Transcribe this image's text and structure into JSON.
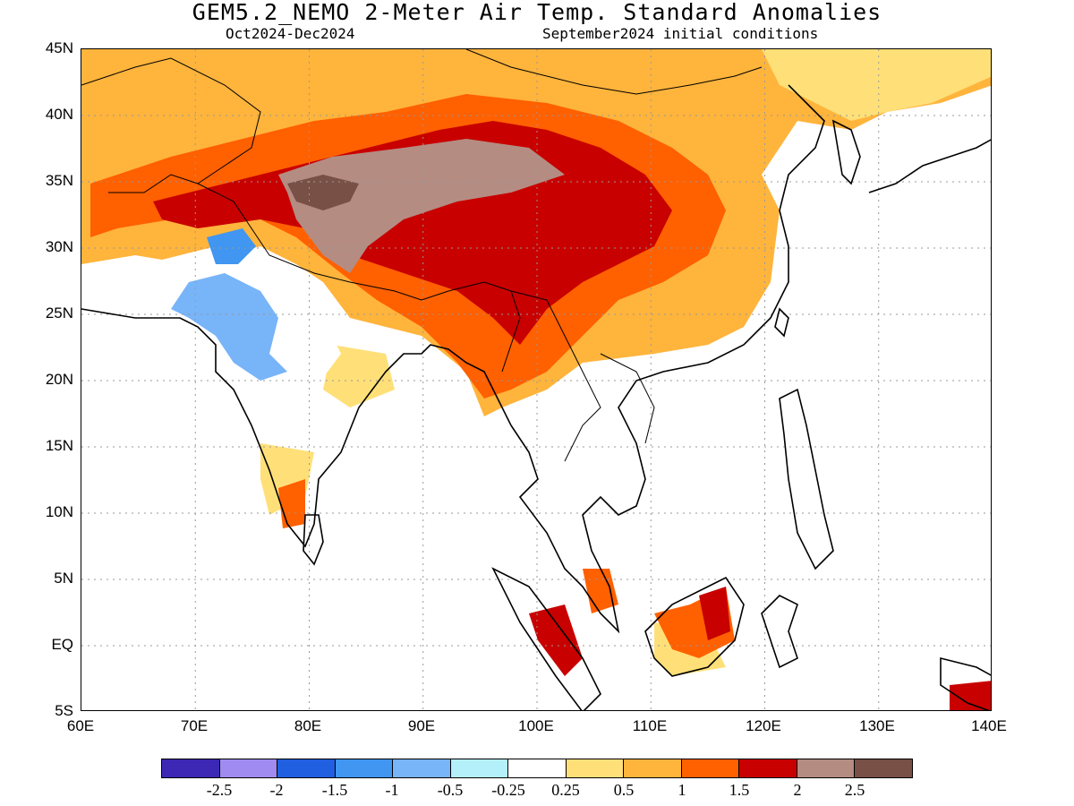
{
  "title": "GEM5.2_NEMO 2-Meter Air Temp. Standard Anomalies",
  "subtitle_period": "Oct2024-Dec2024",
  "subtitle_init": "September2024 initial conditions",
  "map": {
    "lon_range": [
      60,
      140
    ],
    "lat_range": [
      -5,
      45
    ],
    "lat_ticks": [
      "45N",
      "40N",
      "35N",
      "30N",
      "25N",
      "20N",
      "15N",
      "10N",
      "5N",
      "EQ",
      "5S"
    ],
    "lon_ticks": [
      "60E",
      "70E",
      "80E",
      "90E",
      "100E",
      "110E",
      "120E",
      "130E",
      "140E"
    ],
    "gridlines": "dotted"
  },
  "legend": {
    "colors": [
      "#3c28b4",
      "#a08cf0",
      "#2060e0",
      "#4096f0",
      "#78b4f8",
      "#b4f0fa",
      "#ffffff",
      "#ffe078",
      "#ffb43c",
      "#ff6000",
      "#c80000",
      "#b48c82",
      "#785046"
    ],
    "labels": [
      "-2.5",
      "-2",
      "-1.5",
      "-1",
      "-0.5",
      "-0.25",
      "0.25",
      "0.5",
      "1",
      "1.5",
      "2",
      "2.5"
    ]
  }
}
